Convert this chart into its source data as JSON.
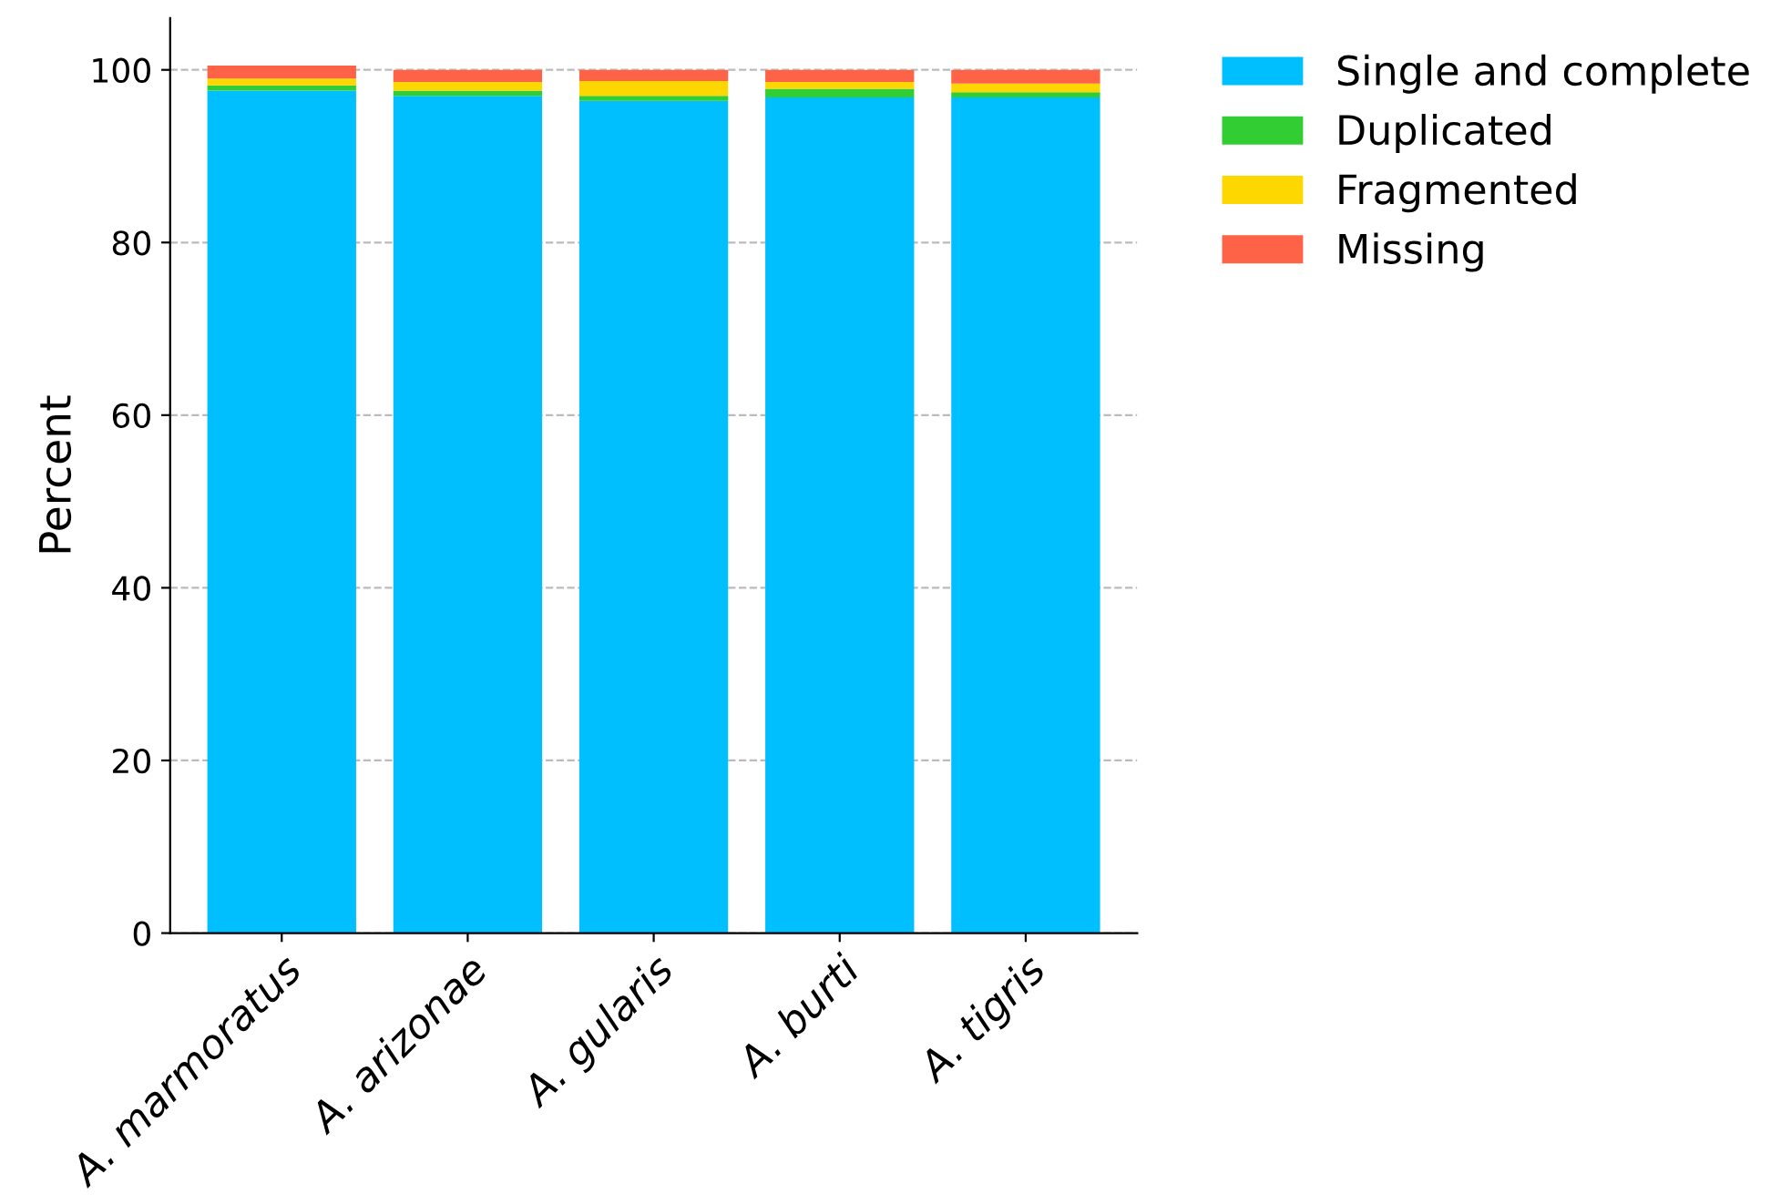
{
  "chart_data": {
    "type": "bar",
    "stacked": true,
    "ylabel": "Percent",
    "categories": [
      "A. marmoratus",
      "A. arizonae",
      "A. gularis",
      "A. burti",
      "A. tigris"
    ],
    "series": [
      {
        "name": "Single and complete",
        "color": "#00bfff",
        "values": [
          97.6,
          97.0,
          96.4,
          96.8,
          96.8
        ]
      },
      {
        "name": "Duplicated",
        "color": "#32cd32",
        "values": [
          0.6,
          0.6,
          0.6,
          1.0,
          0.6
        ]
      },
      {
        "name": "Fragmented",
        "color": "#ffd700",
        "values": [
          0.8,
          1.0,
          1.7,
          0.8,
          1.0
        ]
      },
      {
        "name": "Missing",
        "color": "#ff6347",
        "values": [
          1.5,
          1.4,
          1.3,
          1.4,
          1.6
        ]
      }
    ],
    "ylim": [
      0,
      106
    ],
    "yticks": [
      0,
      20,
      40,
      60,
      80,
      100
    ],
    "grid": "y",
    "legend": "top right"
  }
}
